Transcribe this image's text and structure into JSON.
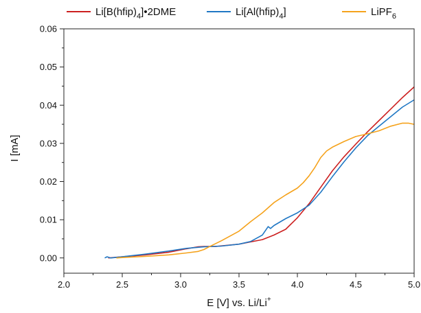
{
  "chart_data": {
    "type": "line",
    "xlabel": "E [V] vs. Li/Li",
    "xlabel_sup": "+",
    "ylabel": "I [mA]",
    "xlim": [
      2.0,
      5.0
    ],
    "ylim": [
      -0.004,
      0.06
    ],
    "xticks": [
      "2.0",
      "2.5",
      "3.0",
      "3.5",
      "4.0",
      "4.5",
      "5.0"
    ],
    "yticks": [
      "0.00",
      "0.01",
      "0.02",
      "0.03",
      "0.04",
      "0.05",
      "0.06"
    ],
    "grid": false,
    "legend_position": "top",
    "series": [
      {
        "name": "Li[B(hfip)4]•2DME",
        "label_parts": [
          "Li[B(hfip)",
          "4",
          "]•2DME"
        ],
        "color": "#cc1f1f",
        "x": [
          2.38,
          2.5,
          2.7,
          2.9,
          3.05,
          3.15,
          3.2,
          3.3,
          3.5,
          3.7,
          3.8,
          3.9,
          4.0,
          4.1,
          4.2,
          4.3,
          4.4,
          4.5,
          4.6,
          4.7,
          4.8,
          4.9,
          5.0
        ],
        "y": [
          0.0,
          0.0003,
          0.0008,
          0.0015,
          0.0024,
          0.0029,
          0.003,
          0.003,
          0.0036,
          0.0048,
          0.006,
          0.0075,
          0.0105,
          0.0142,
          0.0185,
          0.0228,
          0.0265,
          0.0298,
          0.033,
          0.036,
          0.039,
          0.042,
          0.0448
        ]
      },
      {
        "name": "Li[Al(hfip)4]",
        "label_parts": [
          "Li[Al(hfip)",
          "4",
          "]"
        ],
        "color": "#1f77c4",
        "x": [
          2.35,
          2.37,
          2.4,
          2.5,
          2.7,
          2.9,
          3.05,
          3.2,
          3.35,
          3.5,
          3.6,
          3.7,
          3.75,
          3.77,
          3.8,
          3.9,
          4.0,
          4.1,
          4.2,
          4.3,
          4.4,
          4.5,
          4.6,
          4.7,
          4.8,
          4.9,
          5.0
        ],
        "y": [
          0.0,
          0.0003,
          0.0,
          0.0003,
          0.001,
          0.0018,
          0.0025,
          0.0029,
          0.0031,
          0.0036,
          0.0043,
          0.006,
          0.0082,
          0.0077,
          0.0085,
          0.0103,
          0.0118,
          0.0138,
          0.0172,
          0.0213,
          0.0252,
          0.0288,
          0.032,
          0.0345,
          0.037,
          0.0395,
          0.0414
        ]
      },
      {
        "name": "LiPF6",
        "label_parts": [
          "LiPF",
          "6",
          ""
        ],
        "color": "#f5a21b",
        "x": [
          2.45,
          2.5,
          2.7,
          2.9,
          3.05,
          3.15,
          3.2,
          3.25,
          3.35,
          3.5,
          3.6,
          3.7,
          3.8,
          3.9,
          4.0,
          4.05,
          4.1,
          4.15,
          4.2,
          4.25,
          4.3,
          4.4,
          4.5,
          4.6,
          4.7,
          4.8,
          4.9,
          4.95,
          5.0
        ],
        "y": [
          0.0,
          0.0001,
          0.0004,
          0.0008,
          0.0013,
          0.0017,
          0.0022,
          0.003,
          0.0045,
          0.007,
          0.0095,
          0.0118,
          0.0145,
          0.0165,
          0.0183,
          0.0197,
          0.0215,
          0.0237,
          0.0263,
          0.028,
          0.029,
          0.0305,
          0.0318,
          0.0325,
          0.0333,
          0.0345,
          0.0353,
          0.0353,
          0.035
        ]
      }
    ]
  }
}
